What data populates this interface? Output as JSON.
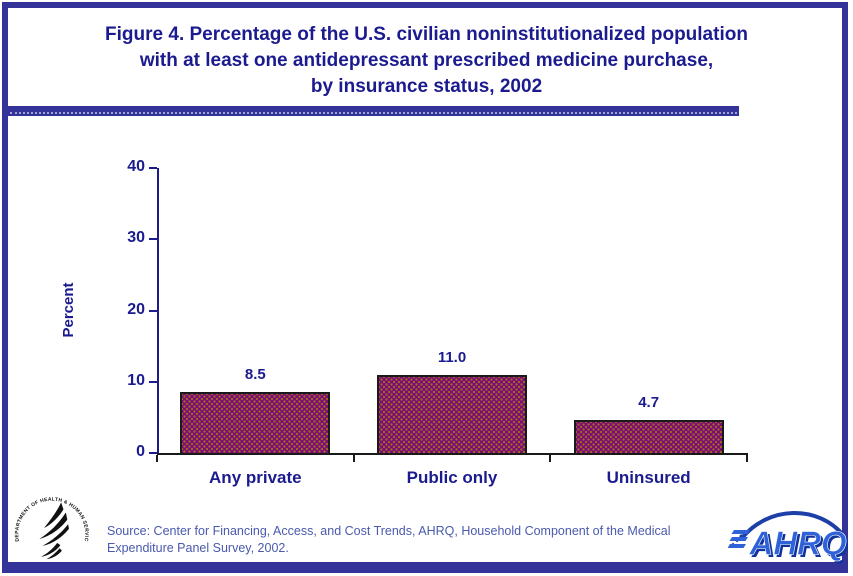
{
  "title": {
    "line1": "Figure 4. Percentage of the U.S. civilian noninstitutionalized population",
    "line2": "with at least one antidepressant prescribed medicine purchase,",
    "line3": "by insurance status, 2002"
  },
  "chart_data": {
    "type": "bar",
    "categories": [
      "Any private",
      "Public only",
      "Uninsured"
    ],
    "values": [
      8.5,
      11.0,
      4.7
    ],
    "value_labels": [
      "8.5",
      "11.0",
      "4.7"
    ],
    "title": "",
    "xlabel": "",
    "ylabel": "Percent",
    "ylim": [
      0,
      40
    ],
    "yticks": [
      0,
      10,
      20,
      30,
      40
    ],
    "grid": false,
    "legend": "none",
    "bar_fill_color": "#7D067F",
    "bar_dot_color": "#9C6B1A",
    "bar_border_color": "#1A1A1A",
    "label_color": "#1B1B8F"
  },
  "footer": {
    "source_text": "Source: Center for Financing, Access, and Cost Trends, AHRQ, Household Component of the Medical Expenditure Panel Survey, 2002.",
    "hhs_logo_text": "DEPARTMENT OF HEALTH & HUMAN SERVICES • USA",
    "ahrq_logo_text": "AHRQ"
  },
  "colors": {
    "navy_text": "#1B1B8F",
    "border_navy": "#333399",
    "source_blue": "#4A5AAD",
    "ahrq_blue": "#2F62D8",
    "ahrq_dark_blue": "#10339B",
    "ahrq_arc_blue": "#1C3FA8"
  }
}
